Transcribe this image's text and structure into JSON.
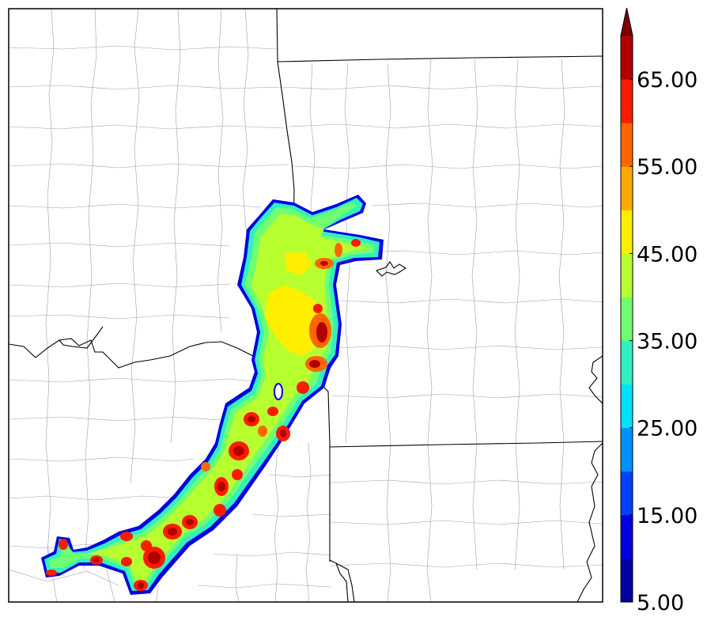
{
  "colorbar": {
    "ticks": [
      "5.00",
      "15.00",
      "25.00",
      "35.00",
      "45.00",
      "55.00",
      "65.00"
    ],
    "levels": [
      5,
      10,
      15,
      20,
      25,
      30,
      35,
      40,
      45,
      50,
      55,
      60,
      65,
      70
    ],
    "colors": [
      "#00009c",
      "#0000e0",
      "#0040ff",
      "#0090ff",
      "#00e0ff",
      "#30f0c0",
      "#70ff70",
      "#b8ff30",
      "#ffee00",
      "#ffaa00",
      "#ff6600",
      "#ff1a00",
      "#b00000"
    ],
    "extend_color": "#7a0000"
  },
  "map": {
    "county_line_color": "#999999",
    "state_line_color": "#000000",
    "field_colors": [
      "#0000e0",
      "#30f0c0",
      "#70ff70",
      "#b8ff30",
      "#ffee00",
      "#ff6600",
      "#ff1a00",
      "#b00000"
    ]
  }
}
